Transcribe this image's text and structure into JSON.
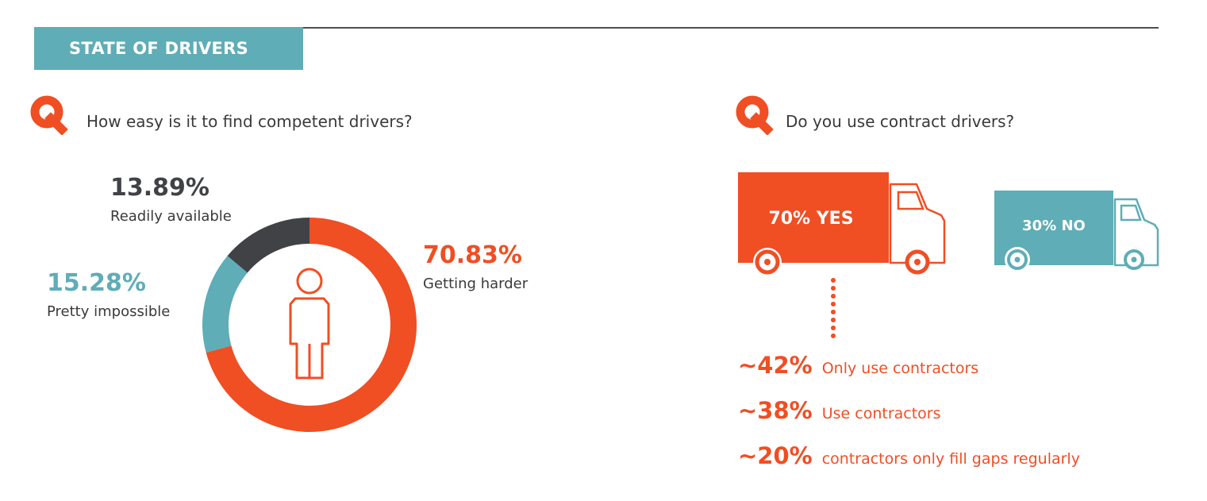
{
  "header": {
    "title": "STATE OF DRIVERS"
  },
  "colors": {
    "orange": "#f04e23",
    "teal": "#5fadb6",
    "dark": "#404246",
    "text": "#3a3a3a"
  },
  "questions": {
    "q1": {
      "icon": "q-icon",
      "text": "How easy is it to find competent drivers?"
    },
    "q2": {
      "icon": "q-icon",
      "text": "Do you use contract drivers?"
    }
  },
  "chart_data": [
    {
      "type": "pie",
      "variant": "donut",
      "center_icon": "person-icon",
      "slices": [
        {
          "label": "Getting harder",
          "value": 70.83,
          "display": "70.83%",
          "color": "#f04e23"
        },
        {
          "label": "Pretty impossible",
          "value": 15.28,
          "display": "15.28%",
          "color": "#5fadb6"
        },
        {
          "label": "Readily available",
          "value": 13.89,
          "display": "13.89%",
          "color": "#404246"
        }
      ]
    },
    {
      "type": "bar",
      "variant": "pictograph-trucks",
      "categories": [
        "YES",
        "NO"
      ],
      "values": [
        70,
        30
      ],
      "labels": [
        "70% YES",
        "30% NO"
      ],
      "colors": [
        "#f04e23",
        "#5fadb6"
      ],
      "breakdown_of": "YES",
      "breakdown": [
        {
          "value": "~42%",
          "label": "Only use contractors"
        },
        {
          "value": "~38%",
          "label": "Use contractors"
        },
        {
          "value": "~20%",
          "label": "contractors only fill gaps regularly"
        }
      ]
    }
  ]
}
